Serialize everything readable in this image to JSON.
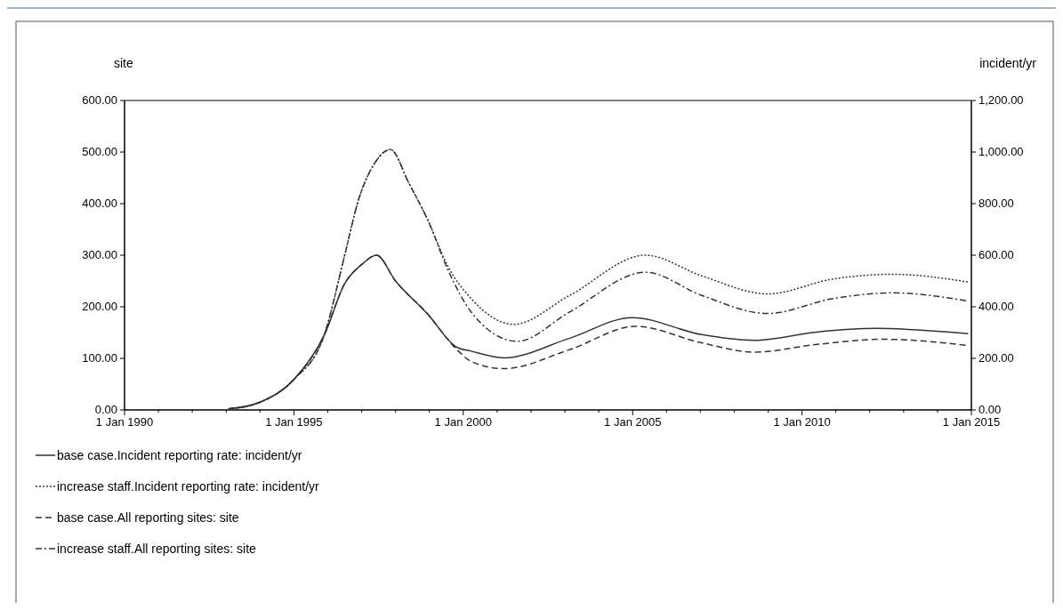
{
  "chart_data": {
    "type": "line",
    "ylabel": "site",
    "y2label": "incident/yr",
    "xlim": [
      "1990-01-01",
      "2015-01-01"
    ],
    "xticks": [
      {
        "value": "1990-01-01",
        "label": "1 Jan 1990"
      },
      {
        "value": "1991-01-01",
        "label": null
      },
      {
        "value": "1992-01-01",
        "label": null
      },
      {
        "value": "1993-01-01",
        "label": null
      },
      {
        "value": "1994-01-01",
        "label": null
      },
      {
        "value": "1995-01-01",
        "label": "1 Jan 1995"
      },
      {
        "value": "1996-01-01",
        "label": null
      },
      {
        "value": "1997-01-01",
        "label": null
      },
      {
        "value": "1998-01-01",
        "label": null
      },
      {
        "value": "1999-01-01",
        "label": null
      },
      {
        "value": "2000-01-01",
        "label": "1 Jan 2000"
      },
      {
        "value": "2001-01-01",
        "label": null
      },
      {
        "value": "2002-01-01",
        "label": null
      },
      {
        "value": "2003-01-01",
        "label": null
      },
      {
        "value": "2004-01-01",
        "label": null
      },
      {
        "value": "2005-01-01",
        "label": "1 Jan 2005"
      },
      {
        "value": "2006-01-01",
        "label": null
      },
      {
        "value": "2007-01-01",
        "label": null
      },
      {
        "value": "2008-01-01",
        "label": null
      },
      {
        "value": "2009-01-01",
        "label": null
      },
      {
        "value": "2010-01-01",
        "label": "1 Jan 2010"
      },
      {
        "value": "2011-01-01",
        "label": null
      },
      {
        "value": "2012-01-01",
        "label": null
      },
      {
        "value": "2013-01-01",
        "label": null
      },
      {
        "value": "2014-01-01",
        "label": null
      },
      {
        "value": "2015-01-01",
        "label": "1 Jan 2015"
      }
    ],
    "ylim": [
      0,
      600
    ],
    "yticks": [
      {
        "value": 0,
        "label": "0.00"
      },
      {
        "value": 100,
        "label": "100.00"
      },
      {
        "value": 200,
        "label": "200.00"
      },
      {
        "value": 300,
        "label": "300.00"
      },
      {
        "value": 400,
        "label": "400.00"
      },
      {
        "value": 500,
        "label": "500.00"
      },
      {
        "value": 600,
        "label": "600.00"
      }
    ],
    "y2lim": [
      0,
      1200
    ],
    "y2ticks": [
      {
        "value": 0,
        "label": "0.00"
      },
      {
        "value": 200,
        "label": "200.00"
      },
      {
        "value": 400,
        "label": "400.00"
      },
      {
        "value": 600,
        "label": "600.00"
      },
      {
        "value": 800,
        "label": "800.00"
      },
      {
        "value": 1000,
        "label": "1,000.00"
      },
      {
        "value": 1200,
        "label": "1,200.00"
      }
    ],
    "legend": "bottom",
    "grid": false,
    "series": [
      {
        "name": "base case.Incident reporting rate: incident/yr",
        "color": "#333333",
        "axis": "y2",
        "line_style": "solid",
        "x": [
          "1993-01-26",
          "1994-01-01",
          "1995-01-01",
          "1995-11-24",
          "1996-07-02",
          "1997-01-01",
          "1997-06-10",
          "1998-01-01",
          "1998-12-13",
          "1999-10-19",
          "2000-03-26",
          "2001-03-14",
          "2003-02-21",
          "2004-12-28",
          "2007-01-16",
          "2008-08-04",
          "2010-06-10",
          "2012-03-11",
          "2014-11-28"
        ],
        "values": [
          4,
          30,
          118,
          290,
          490,
          564,
          600,
          500,
          372,
          244,
          228,
          202,
          278,
          358,
          292,
          270,
          302,
          316,
          296
        ]
      },
      {
        "name": "increase staff.Incident reporting rate: incident/yr",
        "color": "#333333",
        "axis": "y2",
        "line_style": "dotted",
        "x": [
          "1993-01-26",
          "1994-01-01",
          "1995-01-01",
          "1995-11-24",
          "1996-07-02",
          "1996-11-24",
          "1997-05-27",
          "1997-11-06",
          "1998-05-27",
          "1998-12-13",
          "1999-07-24",
          "2000-03-26",
          "2001-06-28",
          "2003-02-21",
          "2005-05-19",
          "2007-01-16",
          "2008-12-24",
          "2010-12-06",
          "2012-09-06",
          "2014-11-28"
        ],
        "values": [
          4,
          30,
          118,
          290,
          600,
          810,
          960,
          1010,
          878,
          738,
          554,
          432,
          332,
          444,
          600,
          520,
          450,
          508,
          526,
          496
        ]
      },
      {
        "name": "base case.All reporting sites: site",
        "color": "#333333",
        "line_style": "dashed",
        "x": [
          "1993-01-26",
          "1994-01-01",
          "1995-01-01",
          "1995-11-24",
          "1996-07-02",
          "1997-01-01",
          "1997-06-10",
          "1998-01-01",
          "1998-12-13",
          "1999-10-19",
          "2000-03-26",
          "2001-03-14",
          "2003-02-21",
          "2005-02-03",
          "2007-01-16",
          "2008-08-04",
          "2010-06-10",
          "2012-05-22",
          "2014-11-28"
        ],
        "values": [
          2,
          15,
          59,
          145,
          245,
          282,
          300,
          250,
          186,
          118,
          94,
          80,
          117,
          162,
          130,
          112,
          127,
          137,
          125
        ]
      },
      {
        "name": "increase staff.All reporting sites: site",
        "color": "#333333",
        "line_style": "dashdot",
        "x": [
          "1993-01-26",
          "1994-01-01",
          "1995-01-01",
          "1995-11-24",
          "1996-07-02",
          "1996-11-24",
          "1997-05-27",
          "1997-11-06",
          "1998-05-27",
          "1998-12-13",
          "1999-07-24",
          "2000-03-26",
          "2001-08-04",
          "2003-02-21",
          "2005-05-19",
          "2007-01-16",
          "2008-12-24",
          "2010-12-06",
          "2012-09-06",
          "2014-11-28"
        ],
        "values": [
          2,
          15,
          59,
          145,
          300,
          405,
          480,
          505,
          439,
          369,
          270,
          190,
          133,
          190,
          267,
          222,
          187,
          216,
          227,
          211
        ]
      }
    ]
  }
}
